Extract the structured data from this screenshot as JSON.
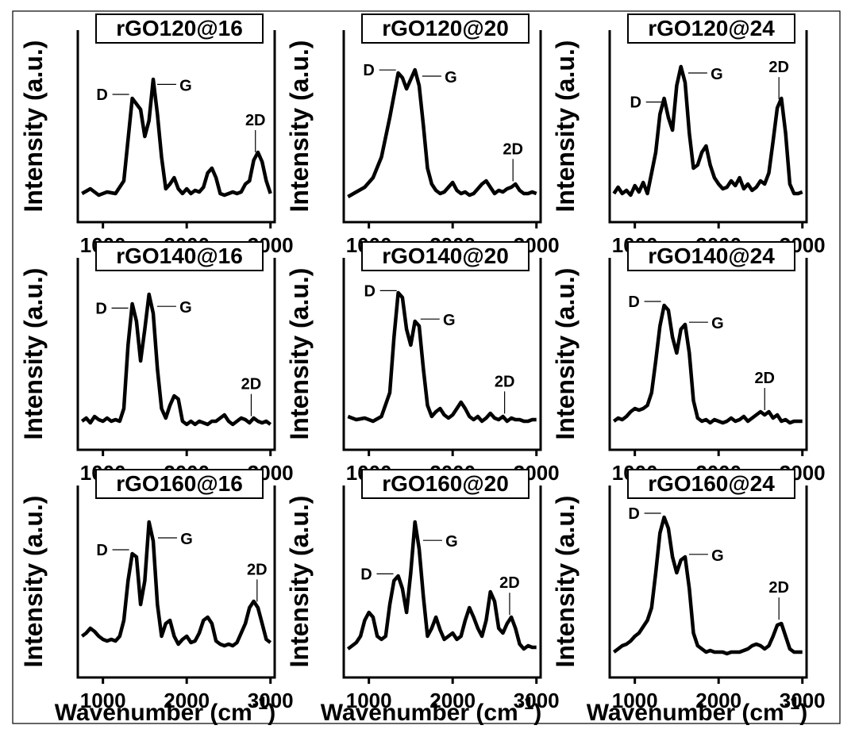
{
  "figure": {
    "ylabel": "Intensity (a.u.)",
    "xlabel": "Wavenumber (cm",
    "xlabel_sup": "-1",
    "xlabel_close": ")"
  },
  "chart_data": [
    {
      "type": "line",
      "title": "rGO120@16",
      "xlim": [
        700,
        3050
      ],
      "xticks": [
        1000,
        2000,
        3000
      ],
      "ylim": [
        0,
        1
      ],
      "series": [
        {
          "x": [
            750,
            850,
            950,
            1050,
            1150,
            1250,
            1350,
            1450,
            1500,
            1550,
            1600,
            1650,
            1700,
            1750,
            1800,
            1850,
            1900,
            1950,
            2000,
            2050,
            2100,
            2150,
            2200,
            2250,
            2300,
            2350,
            2400,
            2450,
            2500,
            2550,
            2600,
            2650,
            2700,
            2750,
            2800,
            2850,
            2900,
            2950,
            3000
          ],
          "y": [
            0.12,
            0.15,
            0.11,
            0.13,
            0.12,
            0.2,
            0.72,
            0.65,
            0.48,
            0.58,
            0.84,
            0.62,
            0.35,
            0.15,
            0.18,
            0.22,
            0.15,
            0.12,
            0.15,
            0.12,
            0.14,
            0.13,
            0.16,
            0.25,
            0.28,
            0.22,
            0.12,
            0.11,
            0.12,
            0.13,
            0.12,
            0.13,
            0.18,
            0.2,
            0.33,
            0.38,
            0.32,
            0.2,
            0.12
          ]
        }
      ],
      "peaks": [
        {
          "label": "D",
          "x": 1350
        },
        {
          "label": "G",
          "x": 1590
        },
        {
          "label": "2D",
          "x": 2820
        }
      ]
    },
    {
      "type": "line",
      "title": "rGO120@20",
      "xlim": [
        700,
        3050
      ],
      "xticks": [
        1000,
        2000,
        3000
      ],
      "ylim": [
        0,
        1
      ],
      "series": [
        {
          "x": [
            750,
            850,
            950,
            1050,
            1150,
            1250,
            1350,
            1400,
            1450,
            1500,
            1550,
            1600,
            1650,
            1700,
            1750,
            1800,
            1850,
            1900,
            1950,
            2000,
            2050,
            2100,
            2150,
            2200,
            2250,
            2300,
            2350,
            2400,
            2450,
            2500,
            2550,
            2600,
            2650,
            2700,
            2750,
            2800,
            2850,
            2900,
            2950,
            3000
          ],
          "y": [
            0.1,
            0.13,
            0.16,
            0.22,
            0.35,
            0.6,
            0.88,
            0.85,
            0.78,
            0.84,
            0.9,
            0.8,
            0.55,
            0.28,
            0.18,
            0.14,
            0.12,
            0.13,
            0.16,
            0.19,
            0.14,
            0.12,
            0.13,
            0.11,
            0.12,
            0.15,
            0.18,
            0.2,
            0.16,
            0.12,
            0.14,
            0.13,
            0.15,
            0.16,
            0.18,
            0.14,
            0.12,
            0.12,
            0.13,
            0.12
          ]
        }
      ],
      "peaks": [
        {
          "label": "D",
          "x": 1360
        },
        {
          "label": "G",
          "x": 1580
        },
        {
          "label": "2D",
          "x": 2720
        }
      ]
    },
    {
      "type": "line",
      "title": "rGO120@24",
      "xlim": [
        700,
        3050
      ],
      "xticks": [
        1000,
        2000,
        3000
      ],
      "ylim": [
        0,
        1
      ],
      "series": [
        {
          "x": [
            750,
            800,
            850,
            900,
            950,
            1000,
            1050,
            1100,
            1150,
            1200,
            1250,
            1300,
            1350,
            1400,
            1450,
            1500,
            1550,
            1600,
            1650,
            1700,
            1750,
            1800,
            1850,
            1900,
            1950,
            2000,
            2050,
            2100,
            2150,
            2200,
            2250,
            2300,
            2350,
            2400,
            2450,
            2500,
            2550,
            2600,
            2650,
            2700,
            2750,
            2800,
            2850,
            2900,
            2950,
            3000
          ],
          "y": [
            0.12,
            0.16,
            0.12,
            0.14,
            0.11,
            0.17,
            0.13,
            0.19,
            0.12,
            0.25,
            0.38,
            0.62,
            0.72,
            0.6,
            0.52,
            0.8,
            0.92,
            0.82,
            0.5,
            0.28,
            0.3,
            0.38,
            0.42,
            0.3,
            0.22,
            0.18,
            0.15,
            0.16,
            0.2,
            0.17,
            0.22,
            0.15,
            0.18,
            0.14,
            0.16,
            0.2,
            0.18,
            0.25,
            0.45,
            0.66,
            0.72,
            0.5,
            0.18,
            0.12,
            0.12,
            0.13
          ]
        }
      ],
      "peaks": [
        {
          "label": "D",
          "x": 1370
        },
        {
          "label": "G",
          "x": 1580
        },
        {
          "label": "2D",
          "x": 2720
        }
      ]
    },
    {
      "type": "line",
      "title": "rGO140@16",
      "xlim": [
        700,
        3050
      ],
      "xticks": [
        1000,
        2000,
        3000
      ],
      "ylim": [
        0,
        1
      ],
      "series": [
        {
          "x": [
            750,
            800,
            850,
            900,
            950,
            1000,
            1050,
            1100,
            1150,
            1200,
            1250,
            1300,
            1350,
            1400,
            1450,
            1500,
            1550,
            1600,
            1650,
            1700,
            1750,
            1800,
            1850,
            1900,
            1950,
            2000,
            2050,
            2100,
            2150,
            2200,
            2250,
            2300,
            2350,
            2400,
            2450,
            2500,
            2550,
            2600,
            2650,
            2700,
            2750,
            2800,
            2850,
            2900,
            2950,
            3000
          ],
          "y": [
            0.12,
            0.14,
            0.11,
            0.15,
            0.13,
            0.12,
            0.14,
            0.12,
            0.13,
            0.12,
            0.2,
            0.6,
            0.86,
            0.75,
            0.5,
            0.7,
            0.92,
            0.8,
            0.45,
            0.2,
            0.14,
            0.22,
            0.28,
            0.26,
            0.12,
            0.1,
            0.12,
            0.1,
            0.12,
            0.11,
            0.1,
            0.12,
            0.12,
            0.14,
            0.16,
            0.12,
            0.1,
            0.12,
            0.14,
            0.13,
            0.11,
            0.14,
            0.12,
            0.11,
            0.12,
            0.1
          ]
        }
      ],
      "peaks": [
        {
          "label": "D",
          "x": 1340
        },
        {
          "label": "G",
          "x": 1590
        },
        {
          "label": "2D",
          "x": 2770
        }
      ]
    },
    {
      "type": "line",
      "title": "rGO140@20",
      "xlim": [
        700,
        3050
      ],
      "xticks": [
        1000,
        2000,
        3000
      ],
      "ylim": [
        0,
        1
      ],
      "series": [
        {
          "x": [
            750,
            850,
            950,
            1050,
            1150,
            1250,
            1300,
            1350,
            1400,
            1450,
            1500,
            1550,
            1600,
            1650,
            1700,
            1750,
            1800,
            1850,
            1900,
            1950,
            2000,
            2050,
            2100,
            2150,
            2200,
            2250,
            2300,
            2350,
            2400,
            2450,
            2500,
            2550,
            2600,
            2650,
            2700,
            2750,
            2800,
            2850,
            2900,
            2950,
            3000
          ],
          "y": [
            0.15,
            0.13,
            0.14,
            0.12,
            0.15,
            0.3,
            0.65,
            0.93,
            0.9,
            0.7,
            0.6,
            0.75,
            0.72,
            0.45,
            0.22,
            0.15,
            0.18,
            0.2,
            0.16,
            0.14,
            0.16,
            0.2,
            0.24,
            0.2,
            0.15,
            0.13,
            0.15,
            0.12,
            0.14,
            0.17,
            0.14,
            0.13,
            0.15,
            0.12,
            0.14,
            0.13,
            0.13,
            0.12,
            0.12,
            0.13,
            0.13
          ]
        }
      ],
      "peaks": [
        {
          "label": "D",
          "x": 1370
        },
        {
          "label": "G",
          "x": 1560
        },
        {
          "label": "2D",
          "x": 2620
        }
      ]
    },
    {
      "type": "line",
      "title": "rGO140@24",
      "xlim": [
        700,
        3050
      ],
      "xticks": [
        1000,
        2000,
        3000
      ],
      "ylim": [
        0,
        1
      ],
      "series": [
        {
          "x": [
            750,
            800,
            850,
            900,
            950,
            1000,
            1050,
            1100,
            1150,
            1200,
            1250,
            1300,
            1350,
            1400,
            1450,
            1500,
            1550,
            1600,
            1650,
            1700,
            1750,
            1800,
            1850,
            1900,
            1950,
            2000,
            2050,
            2100,
            2150,
            2200,
            2250,
            2300,
            2350,
            2400,
            2450,
            2500,
            2550,
            2600,
            2650,
            2700,
            2750,
            2800,
            2850,
            2900,
            2950,
            3000
          ],
          "y": [
            0.12,
            0.14,
            0.13,
            0.15,
            0.18,
            0.2,
            0.19,
            0.2,
            0.22,
            0.3,
            0.5,
            0.72,
            0.85,
            0.82,
            0.65,
            0.55,
            0.7,
            0.73,
            0.55,
            0.25,
            0.14,
            0.12,
            0.13,
            0.11,
            0.13,
            0.12,
            0.11,
            0.12,
            0.14,
            0.12,
            0.13,
            0.15,
            0.12,
            0.14,
            0.16,
            0.18,
            0.16,
            0.18,
            0.14,
            0.16,
            0.12,
            0.13,
            0.11,
            0.12,
            0.12,
            0.12
          ]
        }
      ],
      "peaks": [
        {
          "label": "D",
          "x": 1350
        },
        {
          "label": "G",
          "x": 1590
        },
        {
          "label": "2D",
          "x": 2550
        }
      ]
    },
    {
      "type": "line",
      "title": "rGO160@16",
      "xlim": [
        700,
        3050
      ],
      "xticks": [
        1000,
        2000,
        3000
      ],
      "ylim": [
        0,
        1
      ],
      "series": [
        {
          "x": [
            750,
            800,
            850,
            900,
            950,
            1000,
            1050,
            1100,
            1150,
            1200,
            1250,
            1300,
            1350,
            1400,
            1450,
            1500,
            1550,
            1600,
            1650,
            1700,
            1750,
            1800,
            1850,
            1900,
            1950,
            2000,
            2050,
            2100,
            2150,
            2200,
            2250,
            2300,
            2350,
            2400,
            2450,
            2500,
            2550,
            2600,
            2650,
            2700,
            2750,
            2800,
            2850,
            2900,
            2950,
            3000
          ],
          "y": [
            0.2,
            0.22,
            0.25,
            0.23,
            0.2,
            0.18,
            0.17,
            0.18,
            0.17,
            0.2,
            0.3,
            0.55,
            0.72,
            0.7,
            0.4,
            0.55,
            0.92,
            0.8,
            0.4,
            0.2,
            0.28,
            0.3,
            0.2,
            0.15,
            0.18,
            0.2,
            0.16,
            0.17,
            0.22,
            0.3,
            0.32,
            0.28,
            0.17,
            0.15,
            0.14,
            0.15,
            0.14,
            0.16,
            0.22,
            0.28,
            0.38,
            0.42,
            0.38,
            0.28,
            0.18,
            0.16
          ]
        }
      ],
      "peaks": [
        {
          "label": "D",
          "x": 1350
        },
        {
          "label": "G",
          "x": 1600
        },
        {
          "label": "2D",
          "x": 2840
        }
      ]
    },
    {
      "type": "line",
      "title": "rGO160@20",
      "xlim": [
        700,
        3050
      ],
      "xticks": [
        1000,
        2000,
        3000
      ],
      "ylim": [
        0,
        1
      ],
      "series": [
        {
          "x": [
            750,
            800,
            850,
            900,
            950,
            1000,
            1050,
            1100,
            1150,
            1200,
            1250,
            1300,
            1350,
            1400,
            1450,
            1500,
            1550,
            1600,
            1650,
            1700,
            1750,
            1800,
            1850,
            1900,
            1950,
            2000,
            2050,
            2100,
            2150,
            2200,
            2250,
            2300,
            2350,
            2400,
            2450,
            2500,
            2550,
            2600,
            2650,
            2700,
            2750,
            2800,
            2850,
            2900,
            2950,
            3000
          ],
          "y": [
            0.12,
            0.14,
            0.16,
            0.2,
            0.3,
            0.35,
            0.32,
            0.2,
            0.18,
            0.2,
            0.4,
            0.55,
            0.58,
            0.5,
            0.35,
            0.6,
            0.92,
            0.75,
            0.45,
            0.2,
            0.25,
            0.32,
            0.24,
            0.18,
            0.2,
            0.22,
            0.18,
            0.2,
            0.3,
            0.38,
            0.32,
            0.25,
            0.2,
            0.3,
            0.48,
            0.42,
            0.25,
            0.22,
            0.28,
            0.32,
            0.25,
            0.15,
            0.12,
            0.14,
            0.13,
            0.13
          ]
        }
      ],
      "peaks": [
        {
          "label": "D",
          "x": 1330
        },
        {
          "label": "G",
          "x": 1590
        },
        {
          "label": "2D",
          "x": 2680
        }
      ]
    },
    {
      "type": "line",
      "title": "rGO160@24",
      "xlim": [
        700,
        3050
      ],
      "xticks": [
        1000,
        2000,
        3000
      ],
      "ylim": [
        0,
        1
      ],
      "series": [
        {
          "x": [
            750,
            800,
            850,
            900,
            950,
            1000,
            1050,
            1100,
            1150,
            1200,
            1250,
            1300,
            1350,
            1400,
            1450,
            1500,
            1550,
            1600,
            1650,
            1700,
            1750,
            1800,
            1850,
            1900,
            1950,
            2000,
            2050,
            2100,
            2150,
            2200,
            2250,
            2300,
            2350,
            2400,
            2450,
            2500,
            2550,
            2600,
            2650,
            2700,
            2750,
            2800,
            2850,
            2900,
            2950,
            3000
          ],
          "y": [
            0.1,
            0.12,
            0.14,
            0.15,
            0.17,
            0.2,
            0.22,
            0.26,
            0.3,
            0.38,
            0.6,
            0.85,
            0.95,
            0.88,
            0.7,
            0.6,
            0.68,
            0.7,
            0.5,
            0.22,
            0.14,
            0.12,
            0.1,
            0.11,
            0.1,
            0.1,
            0.1,
            0.09,
            0.1,
            0.1,
            0.1,
            0.11,
            0.12,
            0.14,
            0.15,
            0.14,
            0.12,
            0.14,
            0.2,
            0.27,
            0.28,
            0.2,
            0.12,
            0.1,
            0.1,
            0.1
          ]
        }
      ],
      "peaks": [
        {
          "label": "D",
          "x": 1350
        },
        {
          "label": "G",
          "x": 1590
        },
        {
          "label": "2D",
          "x": 2720
        }
      ]
    }
  ]
}
